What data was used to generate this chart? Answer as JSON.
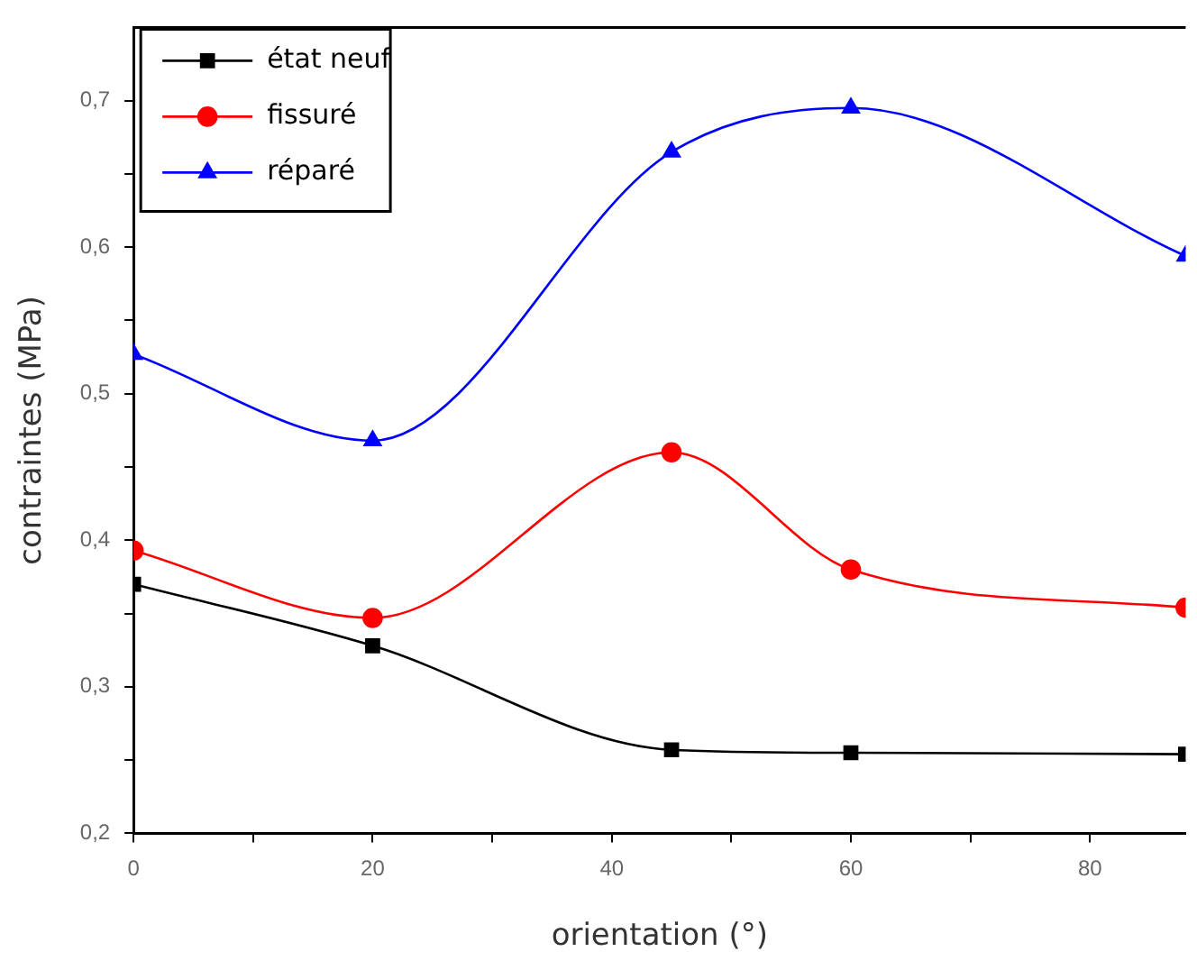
{
  "chart_data": {
    "type": "line",
    "xlabel": "orientation (°)",
    "ylabel": "contraintes (MPa)",
    "x": [
      0,
      20,
      45,
      60,
      88
    ],
    "series": [
      {
        "name": "état neuf",
        "color": "#000000",
        "marker": "square",
        "values": [
          0.37,
          0.328,
          0.257,
          0.255,
          0.254
        ]
      },
      {
        "name": "fissuré",
        "color": "#ff0000",
        "marker": "circle",
        "values": [
          0.393,
          0.347,
          0.46,
          0.38,
          0.354
        ]
      },
      {
        "name": "réparé",
        "color": "#0000ff",
        "marker": "triangle",
        "values": [
          0.527,
          0.468,
          0.665,
          0.695,
          0.594
        ]
      }
    ],
    "xlim": [
      0,
      88
    ],
    "xticks": [
      0,
      {
        "value": 10,
        "label": null
      },
      20,
      {
        "value": 30,
        "label": null
      },
      40,
      {
        "value": 50,
        "label": null
      },
      60,
      {
        "value": 70,
        "label": null
      },
      80
    ],
    "ylim": [
      0.2,
      0.75
    ],
    "yticks": [
      {
        "value": 0.2,
        "label": "0,2"
      },
      {
        "value": 0.25,
        "label": null
      },
      {
        "value": 0.3,
        "label": "0,3"
      },
      {
        "value": 0.35,
        "label": null
      },
      {
        "value": 0.4,
        "label": "0,4"
      },
      {
        "value": 0.45,
        "label": null
      },
      {
        "value": 0.5,
        "label": "0,5"
      },
      {
        "value": 0.55,
        "label": null
      },
      {
        "value": 0.6,
        "label": "0,6"
      },
      {
        "value": 0.65,
        "label": null
      },
      {
        "value": 0.7,
        "label": "0,7"
      }
    ],
    "grid": false,
    "legend": "top left",
    "line_style": "solid"
  }
}
